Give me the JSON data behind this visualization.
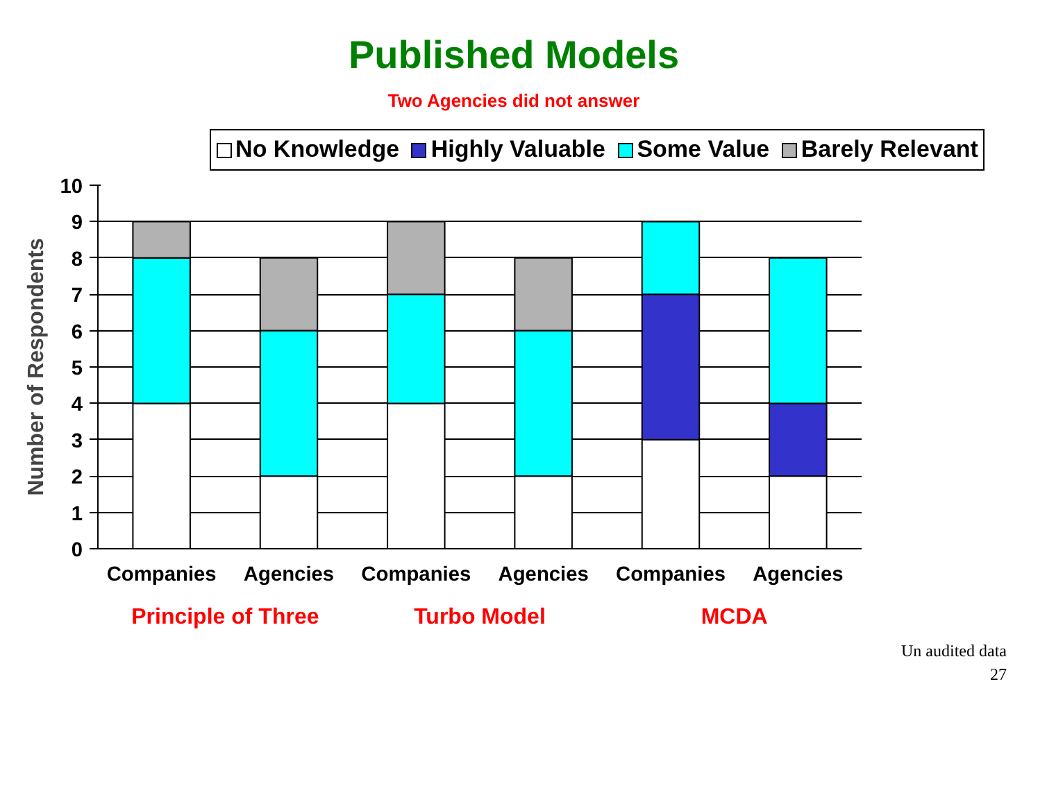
{
  "chart_data": {
    "type": "bar",
    "stacked": true,
    "title": "Published Models",
    "subtitle": "Two Agencies did not answer",
    "ylabel": "Number of Respondents",
    "categories": [
      "Companies",
      "Agencies",
      "Companies",
      "Agencies",
      "Companies",
      "Agencies"
    ],
    "series": [
      {
        "name": "No Knowledge",
        "color": "#ffffff",
        "values": [
          4,
          2,
          4,
          2,
          3,
          2
        ]
      },
      {
        "name": "Highly Valuable",
        "color": "#3333cc",
        "values": [
          0,
          0,
          0,
          0,
          4,
          2
        ]
      },
      {
        "name": "Some Value",
        "color": "#00ffff",
        "values": [
          4,
          4,
          3,
          4,
          2,
          4
        ]
      },
      {
        "name": "Barely Relevant",
        "color": "#b2b2b2",
        "values": [
          1,
          2,
          2,
          2,
          0,
          0
        ]
      }
    ],
    "ylim": [
      0,
      10
    ],
    "yticks": [
      0,
      1,
      2,
      3,
      4,
      5,
      6,
      7,
      8,
      9,
      10
    ],
    "grid": "y",
    "legend": "top",
    "annotations": [
      "Principle of Three",
      "Turbo Model",
      "MCDA",
      "Un audited data",
      "27"
    ]
  }
}
